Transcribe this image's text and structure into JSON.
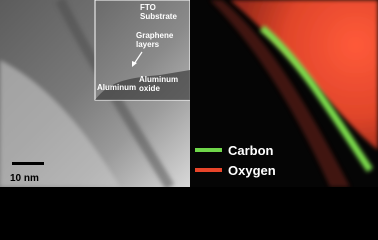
{
  "micrograph": {
    "scale_bar": "10 nm",
    "inset_labels": [
      {
        "lines": [
          "FTO",
          "Substrate"
        ]
      },
      {
        "lines": [
          "Graphene",
          "layers"
        ]
      },
      {
        "lines": [
          "Aluminum"
        ]
      },
      {
        "lines": [
          "Aluminum",
          "oxide"
        ]
      }
    ]
  },
  "map": {
    "legend": [
      {
        "name": "Carbon",
        "color": "#6fd64a"
      },
      {
        "name": "Oxygen",
        "color": "#e8452a"
      }
    ]
  }
}
